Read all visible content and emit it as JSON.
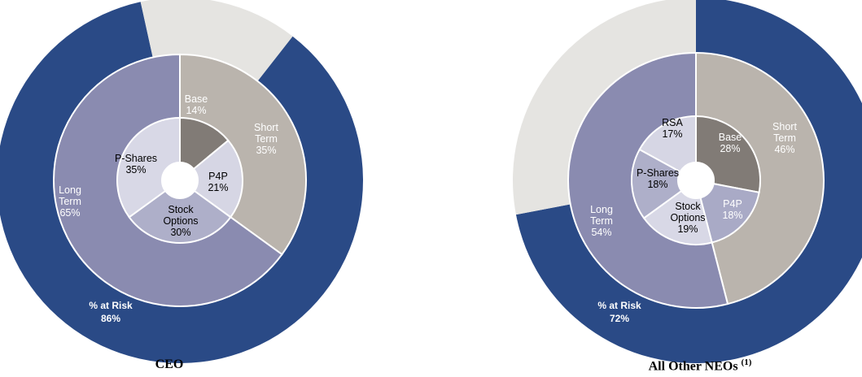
{
  "colors": {
    "risk": "#2a4a86",
    "not_at_risk": "#e5e4e1",
    "short_term": "#bab4ad",
    "long_term": "#8a8bb0",
    "base": "#817b76",
    "p4p_ceo": "#d6d6e4",
    "p4p_neo": "#a9aac6",
    "stock_options_ceo": "#aeafc9",
    "stock_options_neo": "#d8d8e6",
    "p_shares_ceo": "#d8d8e6",
    "p_shares_neo": "#aeafc9",
    "rsa": "#d6d6e4"
  },
  "chart_data": [
    {
      "type": "pie",
      "title": "CEO",
      "rings": {
        "outer": [
          {
            "name": "% at Risk",
            "value": 86,
            "label": [
              "% at Risk",
              "86%"
            ]
          },
          {
            "name": "not at risk",
            "value": 14,
            "label": []
          }
        ],
        "middle": [
          {
            "name": "Short Term",
            "value": 35,
            "label": [
              "Short",
              "Term",
              "35%"
            ]
          },
          {
            "name": "Long Term",
            "value": 65,
            "label": [
              "Long",
              "Term",
              "65%"
            ]
          }
        ],
        "inner": [
          {
            "name": "Base",
            "value": 14,
            "label": [
              "Base",
              "14%"
            ]
          },
          {
            "name": "P4P",
            "value": 21,
            "label": [
              "P4P",
              "21%"
            ]
          },
          {
            "name": "Stock Options",
            "value": 30,
            "label": [
              "Stock",
              "Options",
              "30%"
            ]
          },
          {
            "name": "P-Shares",
            "value": 35,
            "label": [
              "P-Shares",
              "35%"
            ]
          }
        ]
      }
    },
    {
      "type": "pie",
      "title": "All Other NEOs",
      "title_sup": "(1)",
      "rings": {
        "outer": [
          {
            "name": "% at Risk",
            "value": 72,
            "label": [
              "% at Risk",
              "72%"
            ]
          },
          {
            "name": "not at risk",
            "value": 28,
            "label": []
          }
        ],
        "middle": [
          {
            "name": "Short Term",
            "value": 46,
            "label": [
              "Short",
              "Term",
              "46%"
            ]
          },
          {
            "name": "Long Term",
            "value": 54,
            "label": [
              "Long",
              "Term",
              "54%"
            ]
          }
        ],
        "inner": [
          {
            "name": "Base",
            "value": 28,
            "label": [
              "Base",
              "28%"
            ]
          },
          {
            "name": "P4P",
            "value": 18,
            "label": [
              "P4P",
              "18%"
            ]
          },
          {
            "name": "Stock Options",
            "value": 19,
            "label": [
              "Stock",
              "Options",
              "19%"
            ]
          },
          {
            "name": "P-Shares",
            "value": 18,
            "label": [
              "P-Shares",
              "18%"
            ]
          },
          {
            "name": "RSA",
            "value": 17,
            "label": [
              "RSA",
              "17%"
            ]
          }
        ]
      }
    }
  ]
}
